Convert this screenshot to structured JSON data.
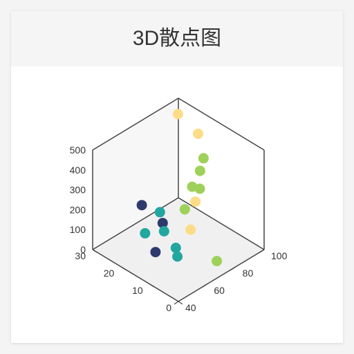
{
  "card": {
    "title": "3D散点图"
  },
  "chart_data": {
    "type": "scatter",
    "chart_kind": "3d-scatter",
    "title": "3D散点图",
    "axes": {
      "x": {
        "range": [
          0,
          30
        ],
        "ticks": [
          0,
          10,
          20,
          30
        ]
      },
      "y": {
        "range": [
          40,
          100
        ],
        "ticks": [
          40,
          60,
          80,
          100
        ]
      },
      "z": {
        "range": [
          0,
          500
        ],
        "ticks": [
          0,
          100,
          200,
          300,
          400,
          500
        ]
      }
    },
    "grid": false,
    "colors": {
      "navy": "#2e3a6e",
      "teal": "#22a6a0",
      "green": "#9fd15a",
      "yellow": "#fddc88",
      "axis": "#444444",
      "pane": "#f0f0f0"
    },
    "points": [
      {
        "x": 20.6,
        "y": 55.6,
        "z": 237,
        "color": "#2e3a6e"
      },
      {
        "x": 13.9,
        "y": 51.8,
        "z": 76,
        "color": "#2e3a6e"
      },
      {
        "x": 18.0,
        "y": 65.0,
        "z": 129,
        "color": "#2e3a6e"
      },
      {
        "x": 16.7,
        "y": 63.4,
        "z": 106,
        "color": "#22a6a0"
      },
      {
        "x": 22.5,
        "y": 61.7,
        "z": 53,
        "color": "#22a6a0"
      },
      {
        "x": 22.2,
        "y": 71.5,
        "z": 119,
        "color": "#22a6a0"
      },
      {
        "x": 12.1,
        "y": 62.4,
        "z": 67,
        "color": "#22a6a0"
      },
      {
        "x": 10.7,
        "y": 60.7,
        "z": 43,
        "color": "#22a6a0"
      },
      {
        "x": 14.8,
        "y": 84.6,
        "z": 244,
        "color": "#9fd15a"
      },
      {
        "x": 17.8,
        "y": 85.3,
        "z": 225,
        "color": "#9fd15a"
      },
      {
        "x": 18.6,
        "y": 92.4,
        "z": 267,
        "color": "#9fd15a"
      },
      {
        "x": 19.1,
        "y": 95.8,
        "z": 311,
        "color": "#9fd15a"
      },
      {
        "x": 16.3,
        "y": 77.1,
        "z": 160,
        "color": "#9fd15a"
      },
      {
        "x": 2.3,
        "y": 71.5,
        "z": 46,
        "color": "#9fd15a"
      },
      {
        "x": 29.8,
        "y": 99.3,
        "z": 425,
        "color": "#fddc88"
      },
      {
        "x": 23.1,
        "y": 100,
        "z": 381,
        "color": "#fddc88"
      },
      {
        "x": 15.0,
        "y": 81.9,
        "z": 189,
        "color": "#fddc88"
      },
      {
        "x": 12.0,
        "y": 72.5,
        "z": 115,
        "color": "#fddc88"
      }
    ]
  }
}
